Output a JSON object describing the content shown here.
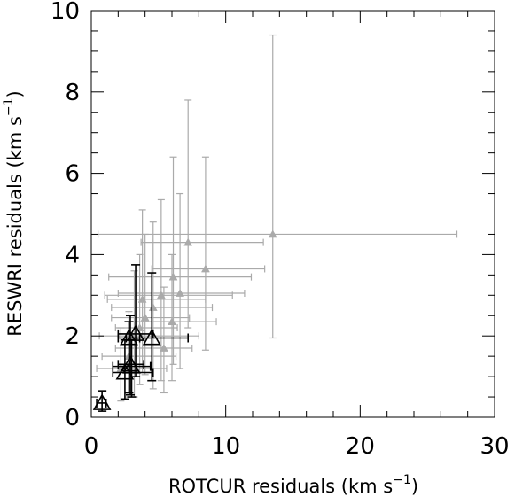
{
  "chart_data": {
    "type": "scatter",
    "title": "",
    "xlabel": "ROTCUR residuals (km s",
    "xlabel_sup": "−1",
    "xlabel_end": ")",
    "ylabel": "RESWRI residuals (km s",
    "ylabel_sup": "−1",
    "ylabel_end": ")",
    "xlim": [
      0,
      30
    ],
    "ylim": [
      0,
      10
    ],
    "xticks": [
      "0",
      "10",
      "20",
      "30"
    ],
    "yticks": [
      "0",
      "2",
      "4",
      "6",
      "8",
      "10"
    ],
    "grid": false,
    "legend": "none",
    "series": [
      {
        "marker": "filled-triangle",
        "color": "#aaaaaa",
        "points": [
          {
            "x": 13.5,
            "y": 4.5,
            "xerr": [
              0.5,
              27.2
            ],
            "yerr": [
              1.95,
              9.4
            ]
          },
          {
            "x": 7.2,
            "y": 4.3,
            "xerr": [
              3.7,
              12.8
            ],
            "yerr": [
              2.2,
              7.8
            ]
          },
          {
            "x": 8.5,
            "y": 3.65,
            "xerr": [
              4.5,
              12.9
            ],
            "yerr": [
              1.65,
              6.4
            ]
          },
          {
            "x": 6.1,
            "y": 3.45,
            "xerr": [
              1.3,
              11.9
            ],
            "yerr": [
              1.3,
              6.4
            ]
          },
          {
            "x": 6.6,
            "y": 3.05,
            "xerr": [
              2.0,
              11.4
            ],
            "yerr": [
              1.2,
              5.5
            ]
          },
          {
            "x": 5.2,
            "y": 3.0,
            "xerr": [
              1.0,
              10.5
            ],
            "yerr": [
              0.9,
              5.35
            ]
          },
          {
            "x": 4.6,
            "y": 2.7,
            "xerr": [
              1.5,
              9.0
            ],
            "yerr": [
              0.7,
              4.8
            ]
          },
          {
            "x": 3.8,
            "y": 2.9,
            "xerr": [
              1.2,
              8.5
            ],
            "yerr": [
              1.1,
              5.1
            ]
          },
          {
            "x": 4.0,
            "y": 2.45,
            "xerr": [
              1.5,
              7.3
            ],
            "yerr": [
              1.05,
              4.5
            ]
          },
          {
            "x": 3.6,
            "y": 2.2,
            "xerr": [
              1.8,
              6.4
            ],
            "yerr": [
              0.8,
              4.0
            ]
          },
          {
            "x": 6.0,
            "y": 2.35,
            "xerr": [
              2.8,
              9.3
            ],
            "yerr": [
              0.9,
              4.0
            ]
          },
          {
            "x": 3.2,
            "y": 2.0,
            "xerr": [
              0.6,
              8.0
            ],
            "yerr": [
              0.5,
              3.6
            ]
          },
          {
            "x": 5.4,
            "y": 1.7,
            "xerr": [
              1.8,
              7.5
            ],
            "yerr": [
              0.6,
              3.2
            ]
          },
          {
            "x": 2.8,
            "y": 1.5,
            "xerr": [
              0.8,
              6.3
            ],
            "yerr": [
              0.5,
              2.6
            ]
          },
          {
            "x": 2.2,
            "y": 1.2,
            "xerr": [
              0.4,
              5.6
            ],
            "yerr": [
              0.4,
              2.2
            ]
          }
        ]
      },
      {
        "marker": "open-triangle",
        "color": "#000000",
        "points": [
          {
            "x": 0.8,
            "y": 0.35,
            "xerr": [
              0.4,
              1.1
            ],
            "yerr": [
              0.15,
              0.65
            ]
          },
          {
            "x": 2.5,
            "y": 1.1,
            "xerr": [
              1.6,
              4.6
            ],
            "yerr": [
              0.45,
              1.9
            ]
          },
          {
            "x": 3.0,
            "y": 1.25,
            "xerr": [
              1.6,
              4.4
            ],
            "yerr": [
              0.5,
              1.9
            ]
          },
          {
            "x": 2.8,
            "y": 1.95,
            "xerr": [
              2.0,
              3.6
            ],
            "yerr": [
              0.6,
              2.35
            ]
          },
          {
            "x": 3.3,
            "y": 2.05,
            "xerr": [
              2.0,
              4.6
            ],
            "yerr": [
              1.0,
              3.75
            ]
          },
          {
            "x": 4.5,
            "y": 1.95,
            "xerr": [
              2.6,
              7.2
            ],
            "yerr": [
              0.9,
              3.55
            ]
          },
          {
            "x": 2.9,
            "y": 1.3,
            "xerr": [
              2.0,
              3.9
            ],
            "yerr": [
              0.55,
              2.5
            ]
          }
        ]
      }
    ]
  }
}
